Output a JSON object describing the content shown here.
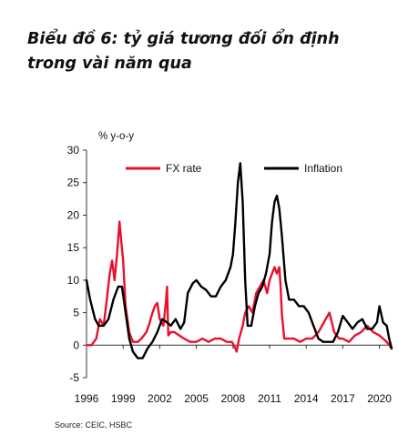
{
  "caption": "Biểu đồ 6: tỷ giá tương đối ổn định trong vài năm qua",
  "source": "Source: CEIC, HSBC",
  "chart_data": {
    "type": "line",
    "ylabel": "% y-o-y",
    "ylim": [
      -5,
      30
    ],
    "yticks": [
      -5,
      0,
      5,
      10,
      15,
      20,
      25,
      30
    ],
    "xlim": [
      1996,
      2021
    ],
    "xticks": [
      1996,
      1999,
      2002,
      2005,
      2008,
      2011,
      2014,
      2017,
      2020
    ],
    "legend_position": "top",
    "series": [
      {
        "name": "FX rate",
        "color": "#e8112d",
        "x": [
          1996,
          1996.4,
          1996.8,
          1997.1,
          1997.4,
          1997.6,
          1997.9,
          1998.1,
          1998.3,
          1998.5,
          1998.7,
          1998.8,
          1999.0,
          1999.2,
          1999.5,
          1999.8,
          2000.2,
          2000.5,
          2000.9,
          2001.1,
          2001.4,
          2001.6,
          2001.8,
          2002.0,
          2002.3,
          2002.5,
          2002.6,
          2002.7,
          2002.9,
          2003.2,
          2003.6,
          2004.0,
          2004.5,
          2005.0,
          2005.5,
          2006.0,
          2006.5,
          2007.0,
          2007.5,
          2007.9,
          2008.2,
          2008.3,
          2008.5,
          2008.8,
          2009.0,
          2009.3,
          2009.6,
          2009.9,
          2010.2,
          2010.5,
          2010.8,
          2011.0,
          2011.2,
          2011.4,
          2011.6,
          2011.8,
          2011.9,
          2012.0,
          2012.2,
          2012.5,
          2013.0,
          2013.5,
          2014.0,
          2014.5,
          2015.0,
          2015.3,
          2015.6,
          2015.9,
          2016.3,
          2016.7,
          2017.0,
          2017.5,
          2018.0,
          2018.5,
          2019.0,
          2019.5,
          2020.0,
          2020.3,
          2020.6,
          2020.8,
          2021.0
        ],
        "values": [
          0,
          0,
          1,
          4,
          3,
          6,
          11,
          13,
          10,
          14,
          19,
          17,
          13,
          6,
          2,
          0.5,
          0.5,
          1,
          2,
          3,
          5,
          6,
          6.5,
          4,
          3,
          6.5,
          9,
          1.5,
          2,
          2,
          1.5,
          1,
          0.5,
          0.5,
          1,
          0.5,
          1,
          1,
          0.5,
          0.5,
          -0.5,
          -1,
          1,
          3,
          5,
          6,
          5,
          8,
          9,
          10,
          8,
          10,
          11,
          12,
          11,
          12,
          9,
          5,
          1,
          1,
          1,
          0.5,
          1,
          1,
          2,
          3,
          4,
          5,
          2,
          1,
          1,
          0.5,
          1.5,
          2,
          3,
          2,
          1.5,
          1,
          0.5,
          0,
          -0.5
        ]
      },
      {
        "name": "Inflation",
        "color": "#000000",
        "x": [
          1996,
          1996.3,
          1996.7,
          1997.0,
          1997.4,
          1997.8,
          1998.2,
          1998.6,
          1998.9,
          1999.2,
          1999.5,
          1999.8,
          2000.2,
          2000.6,
          2001.0,
          2001.4,
          2001.8,
          2002.2,
          2002.6,
          2002.9,
          2003.3,
          2003.7,
          2004.0,
          2004.3,
          2004.7,
          2005.0,
          2005.4,
          2005.8,
          2006.2,
          2006.6,
          2007.0,
          2007.4,
          2007.8,
          2008.0,
          2008.2,
          2008.4,
          2008.6,
          2008.8,
          2009.0,
          2009.2,
          2009.5,
          2009.8,
          2010.1,
          2010.4,
          2010.7,
          2011.0,
          2011.2,
          2011.4,
          2011.6,
          2011.8,
          2012.0,
          2012.3,
          2012.6,
          2013.0,
          2013.4,
          2013.8,
          2014.2,
          2014.6,
          2015.0,
          2015.4,
          2015.8,
          2016.2,
          2016.6,
          2017.0,
          2017.4,
          2017.8,
          2018.2,
          2018.6,
          2019.0,
          2019.4,
          2019.8,
          2020.0,
          2020.3,
          2020.6,
          2020.8,
          2021.0
        ],
        "values": [
          10,
          7,
          4,
          3,
          3,
          4,
          7,
          9,
          9,
          5,
          1,
          -1,
          -2,
          -2,
          -0.5,
          0.5,
          2,
          4,
          3.5,
          3,
          4,
          2.5,
          3.5,
          8,
          9.5,
          10,
          9,
          8.5,
          7.5,
          7.5,
          9,
          10,
          12,
          14,
          19,
          25,
          28,
          22,
          10,
          3,
          3,
          6,
          8,
          9,
          11,
          14,
          19,
          22,
          23,
          21,
          17,
          10,
          7,
          7,
          6,
          6,
          5,
          3,
          1,
          0.5,
          0.5,
          0.5,
          2,
          4.5,
          3.5,
          2.5,
          3.5,
          4,
          2.5,
          2.5,
          3.5,
          6,
          3.5,
          3,
          1,
          -0.5
        ]
      }
    ]
  }
}
